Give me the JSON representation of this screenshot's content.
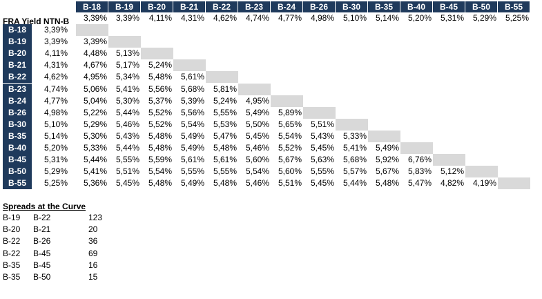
{
  "title": "FRA Yield NTN-B",
  "columns": [
    "B-18",
    "B-19",
    "B-20",
    "B-21",
    "B-22",
    "B-23",
    "B-24",
    "B-26",
    "B-30",
    "B-35",
    "B-40",
    "B-45",
    "B-50",
    "B-55"
  ],
  "column_yields": [
    "3,39%",
    "3,39%",
    "4,11%",
    "4,31%",
    "4,62%",
    "4,74%",
    "4,77%",
    "4,98%",
    "5,10%",
    "5,14%",
    "5,20%",
    "5,31%",
    "5,29%",
    "5,25%"
  ],
  "rows": [
    {
      "label": "B-18",
      "yield": "3,39%",
      "values": []
    },
    {
      "label": "B-19",
      "yield": "3,39%",
      "values": [
        "3,39%"
      ]
    },
    {
      "label": "B-20",
      "yield": "4,11%",
      "values": [
        "4,48%",
        "5,13%"
      ]
    },
    {
      "label": "B-21",
      "yield": "4,31%",
      "values": [
        "4,67%",
        "5,17%",
        "5,24%"
      ]
    },
    {
      "label": "B-22",
      "yield": "4,62%",
      "values": [
        "4,95%",
        "5,34%",
        "5,48%",
        "5,61%"
      ]
    },
    {
      "label": "B-23",
      "yield": "4,74%",
      "values": [
        "5,06%",
        "5,41%",
        "5,56%",
        "5,68%",
        "5,81%"
      ]
    },
    {
      "label": "B-24",
      "yield": "4,77%",
      "values": [
        "5,04%",
        "5,30%",
        "5,37%",
        "5,39%",
        "5,24%",
        "4,95%"
      ]
    },
    {
      "label": "B-26",
      "yield": "4,98%",
      "values": [
        "5,22%",
        "5,44%",
        "5,52%",
        "5,56%",
        "5,55%",
        "5,49%",
        "5,89%"
      ]
    },
    {
      "label": "B-30",
      "yield": "5,10%",
      "values": [
        "5,29%",
        "5,46%",
        "5,52%",
        "5,54%",
        "5,53%",
        "5,50%",
        "5,65%",
        "5,51%"
      ]
    },
    {
      "label": "B-35",
      "yield": "5,14%",
      "values": [
        "5,30%",
        "5,43%",
        "5,48%",
        "5,49%",
        "5,47%",
        "5,45%",
        "5,54%",
        "5,43%",
        "5,33%"
      ]
    },
    {
      "label": "B-40",
      "yield": "5,20%",
      "values": [
        "5,33%",
        "5,44%",
        "5,48%",
        "5,49%",
        "5,48%",
        "5,46%",
        "5,52%",
        "5,45%",
        "5,41%",
        "5,49%"
      ]
    },
    {
      "label": "B-45",
      "yield": "5,31%",
      "values": [
        "5,44%",
        "5,55%",
        "5,59%",
        "5,61%",
        "5,61%",
        "5,60%",
        "5,67%",
        "5,63%",
        "5,68%",
        "5,92%",
        "6,76%"
      ]
    },
    {
      "label": "B-50",
      "yield": "5,29%",
      "values": [
        "5,41%",
        "5,51%",
        "5,54%",
        "5,55%",
        "5,55%",
        "5,54%",
        "5,60%",
        "5,55%",
        "5,57%",
        "5,67%",
        "5,83%",
        "5,12%"
      ]
    },
    {
      "label": "B-55",
      "yield": "5,25%",
      "values": [
        "5,36%",
        "5,45%",
        "5,48%",
        "5,49%",
        "5,48%",
        "5,46%",
        "5,51%",
        "5,45%",
        "5,44%",
        "5,48%",
        "5,47%",
        "4,82%",
        "4,19%"
      ]
    }
  ],
  "spreads": {
    "title": "Spreads at the Curve",
    "items": [
      {
        "from": "B-19",
        "to": "B-22",
        "value": "123"
      },
      {
        "from": "B-20",
        "to": "B-21",
        "value": "20"
      },
      {
        "from": "B-22",
        "to": "B-26",
        "value": "36"
      },
      {
        "from": "B-22",
        "to": "B-45",
        "value": "69"
      },
      {
        "from": "B-35",
        "to": "B-45",
        "value": "16"
      },
      {
        "from": "B-35",
        "to": "B-50",
        "value": "15"
      }
    ]
  },
  "colors": {
    "header_bg": "#1f3a5c",
    "header_text": "#ffffff",
    "diagonal": "#d9d9d9"
  }
}
